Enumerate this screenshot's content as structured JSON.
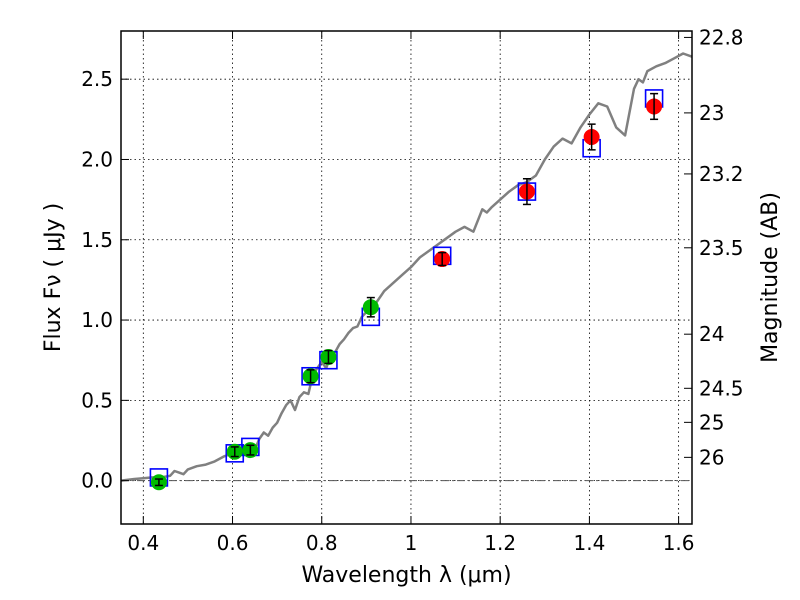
{
  "chart_data": {
    "type": "scatter",
    "xlabel": "Wavelength  λ (μm)",
    "ylabel": "Flux  Fν  ( μJy )",
    "y2label": "Magnitude (AB)",
    "xlim": [
      0.35,
      1.63
    ],
    "ylim": [
      -0.27,
      2.8
    ],
    "grid": true,
    "x_ticks": [
      0.4,
      0.6,
      0.8,
      1.0,
      1.2,
      1.4,
      1.6
    ],
    "x_tick_labels": [
      "0.4",
      "0.6",
      "0.8",
      "1",
      "1.2",
      "1.4",
      "1.6"
    ],
    "y_ticks": [
      0.0,
      0.5,
      1.0,
      1.5,
      2.0,
      2.5
    ],
    "y_tick_labels": [
      "0.0",
      "0.5",
      "1.0",
      "1.5",
      "2.0",
      "2.5"
    ],
    "mag_ticks": [
      {
        "label": "22.8",
        "flux": 2.76
      },
      {
        "label": "23",
        "flux": 2.29
      },
      {
        "label": "23.2",
        "flux": 1.91
      },
      {
        "label": "23.5",
        "flux": 1.45
      },
      {
        "label": "24",
        "flux": 0.912
      },
      {
        "label": "24.5",
        "flux": 0.575
      },
      {
        "label": "25",
        "flux": 0.363
      },
      {
        "label": "26",
        "flux": 0.145
      }
    ],
    "zero_line": 0.0,
    "model_spectrum": {
      "color": "#808080",
      "x": [
        0.35,
        0.38,
        0.4,
        0.42,
        0.44,
        0.46,
        0.47,
        0.48,
        0.49,
        0.5,
        0.52,
        0.54,
        0.56,
        0.58,
        0.6,
        0.62,
        0.63,
        0.64,
        0.65,
        0.66,
        0.67,
        0.68,
        0.69,
        0.7,
        0.71,
        0.72,
        0.73,
        0.74,
        0.75,
        0.76,
        0.77,
        0.78,
        0.79,
        0.8,
        0.81,
        0.82,
        0.83,
        0.84,
        0.85,
        0.86,
        0.87,
        0.88,
        0.89,
        0.9,
        0.92,
        0.94,
        0.96,
        0.98,
        1.0,
        1.02,
        1.04,
        1.06,
        1.08,
        1.1,
        1.12,
        1.14,
        1.16,
        1.17,
        1.18,
        1.2,
        1.22,
        1.24,
        1.26,
        1.28,
        1.3,
        1.32,
        1.34,
        1.36,
        1.38,
        1.4,
        1.42,
        1.44,
        1.46,
        1.48,
        1.5,
        1.51,
        1.52,
        1.53,
        1.55,
        1.57,
        1.59,
        1.61,
        1.63
      ],
      "y": [
        0.0,
        0.01,
        0.015,
        0.02,
        0.02,
        0.03,
        0.06,
        0.05,
        0.04,
        0.07,
        0.09,
        0.1,
        0.12,
        0.15,
        0.17,
        0.19,
        0.2,
        0.22,
        0.19,
        0.26,
        0.3,
        0.28,
        0.33,
        0.36,
        0.42,
        0.47,
        0.5,
        0.44,
        0.52,
        0.55,
        0.54,
        0.66,
        0.7,
        0.74,
        0.7,
        0.78,
        0.8,
        0.85,
        0.88,
        0.92,
        0.95,
        0.96,
        1.02,
        1.05,
        1.1,
        1.18,
        1.23,
        1.28,
        1.33,
        1.39,
        1.43,
        1.47,
        1.51,
        1.55,
        1.58,
        1.55,
        1.69,
        1.67,
        1.7,
        1.75,
        1.8,
        1.84,
        1.86,
        1.9,
        2.0,
        2.08,
        2.13,
        2.1,
        2.2,
        2.28,
        2.35,
        2.33,
        2.2,
        2.15,
        2.44,
        2.5,
        2.48,
        2.55,
        2.58,
        2.6,
        2.63,
        2.66,
        2.64
      ]
    },
    "series": [
      {
        "marker": "square-open",
        "color": "#0000ff",
        "x": [
          0.435,
          0.605,
          0.64,
          0.775,
          0.815,
          0.91,
          1.07,
          1.26,
          1.405,
          1.545
        ],
        "y": [
          0.02,
          0.17,
          0.21,
          0.65,
          0.75,
          1.02,
          1.4,
          1.8,
          2.07,
          2.38
        ]
      },
      {
        "marker": "circle",
        "color": "#00bb00",
        "x": [
          0.435,
          0.605,
          0.64,
          0.775,
          0.815,
          0.91
        ],
        "y": [
          -0.01,
          0.18,
          0.19,
          0.65,
          0.77,
          1.08
        ],
        "err": [
          0.02,
          0.03,
          0.03,
          0.04,
          0.04,
          0.06
        ]
      },
      {
        "marker": "circle",
        "color": "#ff0000",
        "x": [
          1.07,
          1.26,
          1.405,
          1.545
        ],
        "y": [
          1.38,
          1.8,
          2.14,
          2.33
        ],
        "err": [
          0.04,
          0.08,
          0.08,
          0.08
        ]
      }
    ]
  }
}
